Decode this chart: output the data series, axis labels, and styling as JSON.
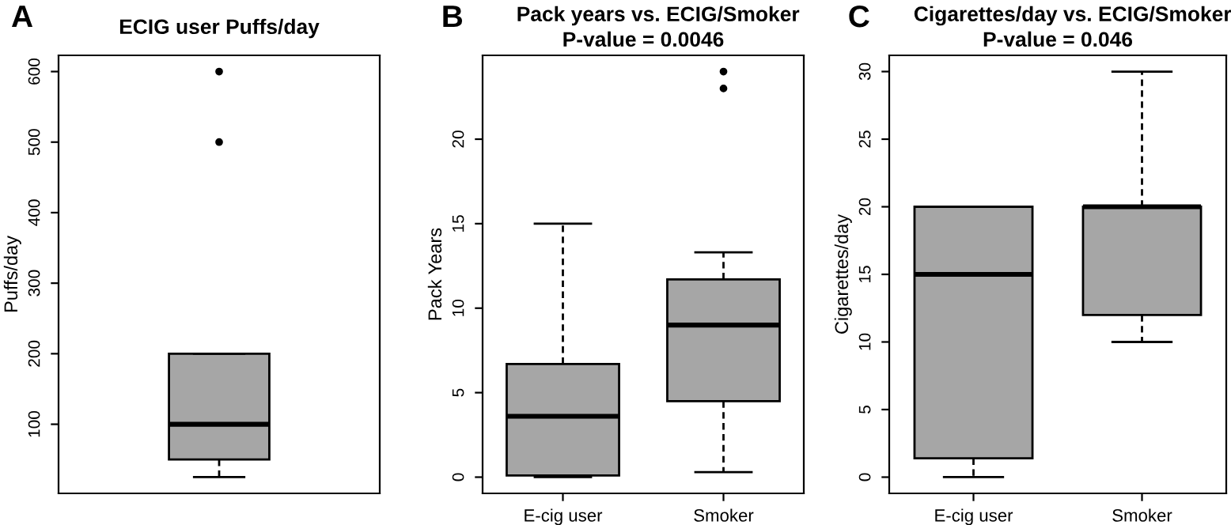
{
  "chart_data": [
    {
      "type": "box",
      "title": "ECIG user Puffs/day",
      "ylabel": "Puffs/day",
      "annotations": [
        "A"
      ],
      "categories": [
        null
      ],
      "tick_labels": "y",
      "ylim": [
        2,
        623
      ],
      "yticks": [
        100,
        200,
        300,
        400,
        500,
        600
      ],
      "series": [
        {
          "color": "#a6a6a6",
          "boxes": [
            {
              "low": 25,
              "q1": 50,
              "median": 100,
              "q3": 200,
              "high": 200,
              "outliers": [
                500,
                600
              ]
            }
          ]
        }
      ]
    },
    {
      "type": "box",
      "title": "Pack years vs. ECIG/Smoker",
      "subtitle": "P-value = 0.0046",
      "ylabel": "Pack Years",
      "annotations": [
        "B"
      ],
      "categories": [
        "E-cig user",
        "Smoker"
      ],
      "ylim": [
        -0.96,
        24.96
      ],
      "yticks": [
        0,
        5,
        10,
        15,
        20
      ],
      "series": [
        {
          "color": "#a6a6a6",
          "boxes": [
            {
              "low": 0,
              "q1": 0.1,
              "median": 3.6,
              "q3": 6.7,
              "high": 15
            },
            {
              "low": 0.3,
              "q1": 4.5,
              "median": 9,
              "q3": 11.7,
              "high": 13.3,
              "outliers": [
                23,
                24
              ]
            }
          ]
        }
      ]
    },
    {
      "type": "box",
      "title": "Cigarettes/day vs. ECIG/Smoker",
      "subtitle": "P-value = 0.046",
      "ylabel": "Cigarettes/day",
      "annotations": [
        "C"
      ],
      "categories": [
        "E-cig user",
        "Smoker"
      ],
      "ylim": [
        -1.2,
        31.2
      ],
      "yticks": [
        0,
        5,
        10,
        15,
        20,
        25,
        30
      ],
      "series": [
        {
          "color": "#a6a6a6",
          "boxes": [
            {
              "low": 0,
              "q1": 1.4,
              "median": 15,
              "q3": 20,
              "high": 20
            },
            {
              "low": 10,
              "q1": 12,
              "median": 20,
              "q3": 20,
              "high": 30
            }
          ]
        }
      ]
    }
  ]
}
